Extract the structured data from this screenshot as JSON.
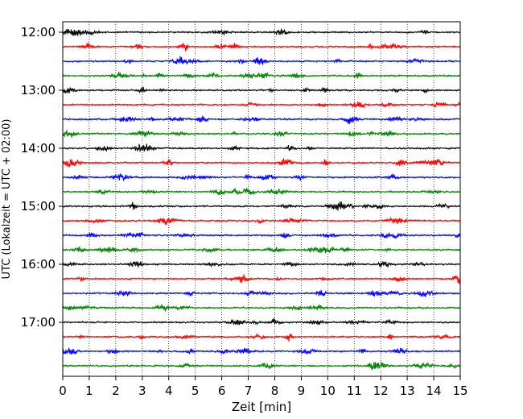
{
  "chart_data": {
    "type": "line",
    "title": "",
    "xlabel": "Zeit  [min]",
    "ylabel": "UTC (Lokalzeit = UTC + 02:00)",
    "xlim": [
      0,
      15
    ],
    "x_ticks": [
      "0",
      "1",
      "2",
      "3",
      "4",
      "5",
      "6",
      "7",
      "8",
      "9",
      "10",
      "11",
      "12",
      "13",
      "14",
      "15"
    ],
    "y_ticks": [
      "12:00",
      "13:00",
      "14:00",
      "15:00",
      "16:00",
      "17:00"
    ],
    "grid": "vertical dotted",
    "trace_interval_min": 15,
    "trace_colors": [
      "#000000",
      "#ff0000",
      "#0000ff",
      "#008000"
    ],
    "traces": [
      {
        "start": "12:00",
        "color": "#000000"
      },
      {
        "start": "12:15",
        "color": "#ff0000"
      },
      {
        "start": "12:30",
        "color": "#0000ff"
      },
      {
        "start": "12:45",
        "color": "#008000"
      },
      {
        "start": "13:00",
        "color": "#000000"
      },
      {
        "start": "13:15",
        "color": "#ff0000"
      },
      {
        "start": "13:30",
        "color": "#0000ff"
      },
      {
        "start": "13:45",
        "color": "#008000"
      },
      {
        "start": "14:00",
        "color": "#000000"
      },
      {
        "start": "14:15",
        "color": "#ff0000"
      },
      {
        "start": "14:30",
        "color": "#0000ff"
      },
      {
        "start": "14:45",
        "color": "#008000"
      },
      {
        "start": "15:00",
        "color": "#000000"
      },
      {
        "start": "15:15",
        "color": "#ff0000"
      },
      {
        "start": "15:30",
        "color": "#0000ff"
      },
      {
        "start": "15:45",
        "color": "#008000"
      },
      {
        "start": "16:00",
        "color": "#000000"
      },
      {
        "start": "16:15",
        "color": "#ff0000"
      },
      {
        "start": "16:30",
        "color": "#0000ff"
      },
      {
        "start": "16:45",
        "color": "#008000"
      },
      {
        "start": "17:00",
        "color": "#000000"
      },
      {
        "start": "17:15",
        "color": "#ff0000"
      },
      {
        "start": "17:30",
        "color": "#0000ff"
      },
      {
        "start": "17:45",
        "color": "#008000"
      }
    ]
  }
}
